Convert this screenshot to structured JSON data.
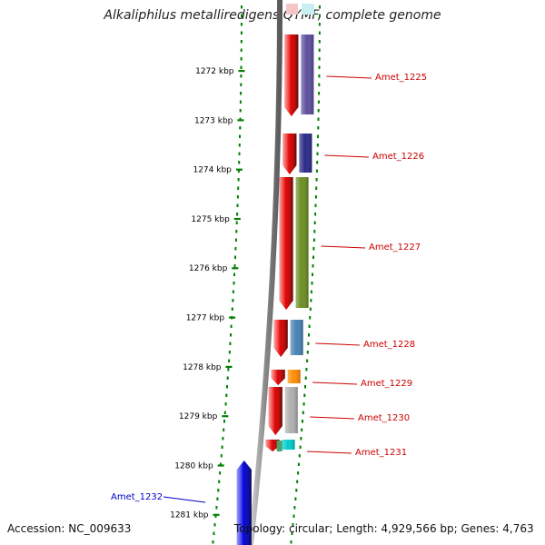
{
  "title": "Alkaliphilus metalliredigens QYMF, complete genome",
  "footer": {
    "accession": "Accession: NC_009633",
    "summary": "Topology: circular; Length: 4,929,566 bp; Genes: 4,763"
  },
  "ticks": [
    "1272 kbp",
    "1273 kbp",
    "1274 kbp",
    "1275 kbp",
    "1276 kbp",
    "1277 kbp",
    "1278 kbp",
    "1279 kbp",
    "1280 kbp",
    "1281 kbp"
  ],
  "genes": [
    {
      "label": "Amet_1225",
      "color": "#cc0000",
      "strand": "plus",
      "cog_color": "#5c4e9e"
    },
    {
      "label": "Amet_1226",
      "color": "#cc0000",
      "strand": "plus",
      "cog_color": "#2a2a8a"
    },
    {
      "label": "Amet_1227",
      "color": "#cc0000",
      "strand": "plus",
      "cog_color": "#6b8e23"
    },
    {
      "label": "Amet_1228",
      "color": "#cc0000",
      "strand": "plus",
      "cog_color": "#4682b4"
    },
    {
      "label": "Amet_1229",
      "color": "#cc0000",
      "strand": "plus",
      "cog_color": "#ff8c00"
    },
    {
      "label": "Amet_1230",
      "color": "#cc0000",
      "strand": "plus",
      "cog_color": "#b0b0b0"
    },
    {
      "label": "Amet_1231",
      "color": "#cc0000",
      "strand": "plus",
      "cog_color": "#00cccc"
    },
    {
      "label": "Amet_1232",
      "color": "#0000cc",
      "strand": "minus",
      "cog_color": "#0000ff"
    }
  ],
  "colors": {
    "plus_strand": "#ee0000",
    "minus_strand": "#0000ee",
    "backbone": "#888888",
    "tick": "#008000"
  }
}
